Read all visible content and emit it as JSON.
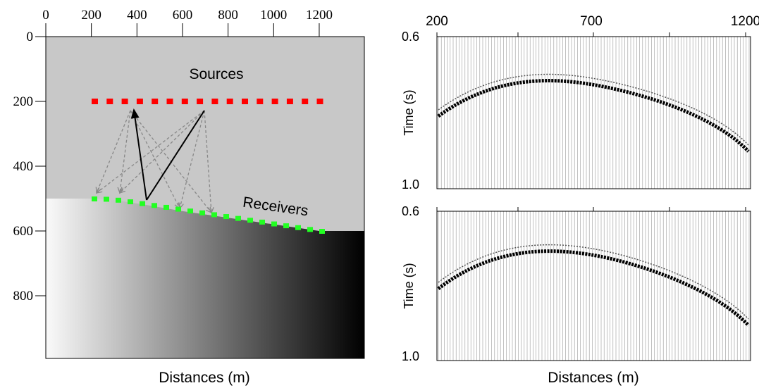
{
  "model": {
    "xticks": [
      0,
      200,
      400,
      600,
      800,
      1000,
      1200
    ],
    "yticks": [
      0,
      200,
      400,
      600,
      800
    ],
    "sources_label": "Sources",
    "receivers_label": "Receivers",
    "xlabel": "Distances (m)"
  },
  "gathers": {
    "xticks": [
      200,
      700,
      1200
    ],
    "panels": [
      {
        "ytop": "0.6",
        "ybottom": "1.0",
        "ylabel": "Time (s)"
      },
      {
        "ytop": "0.6",
        "ybottom": "1.0",
        "ylabel": "Time (s)"
      }
    ],
    "xlabel": "Distances (m)"
  }
}
